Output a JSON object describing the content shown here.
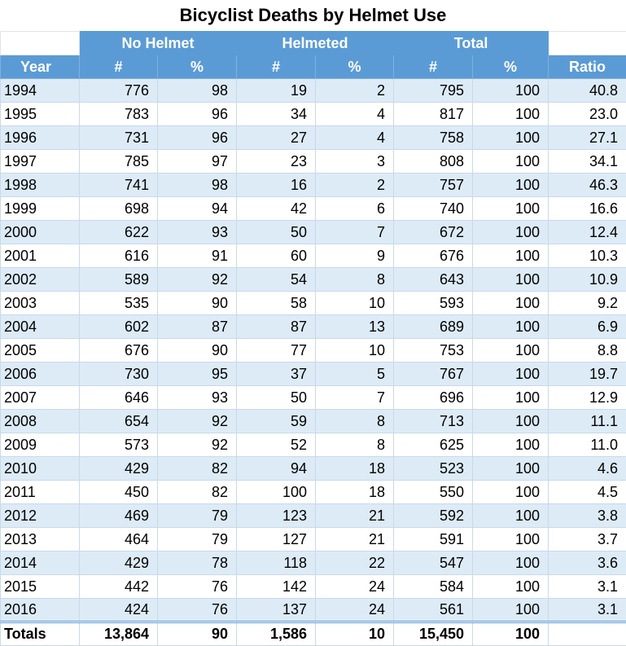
{
  "title": "Bicyclist Deaths by Helmet Use",
  "group_headers": [
    "No Helmet",
    "Helmeted",
    "Total"
  ],
  "columns": [
    "Year",
    "#",
    "%",
    "#",
    "%",
    "#",
    "%",
    "Ratio"
  ],
  "rows": [
    [
      "1994",
      "776",
      "98",
      "19",
      "2",
      "795",
      "100",
      "40.8"
    ],
    [
      "1995",
      "783",
      "96",
      "34",
      "4",
      "817",
      "100",
      "23.0"
    ],
    [
      "1996",
      "731",
      "96",
      "27",
      "4",
      "758",
      "100",
      "27.1"
    ],
    [
      "1997",
      "785",
      "97",
      "23",
      "3",
      "808",
      "100",
      "34.1"
    ],
    [
      "1998",
      "741",
      "98",
      "16",
      "2",
      "757",
      "100",
      "46.3"
    ],
    [
      "1999",
      "698",
      "94",
      "42",
      "6",
      "740",
      "100",
      "16.6"
    ],
    [
      "2000",
      "622",
      "93",
      "50",
      "7",
      "672",
      "100",
      "12.4"
    ],
    [
      "2001",
      "616",
      "91",
      "60",
      "9",
      "676",
      "100",
      "10.3"
    ],
    [
      "2002",
      "589",
      "92",
      "54",
      "8",
      "643",
      "100",
      "10.9"
    ],
    [
      "2003",
      "535",
      "90",
      "58",
      "10",
      "593",
      "100",
      "9.2"
    ],
    [
      "2004",
      "602",
      "87",
      "87",
      "13",
      "689",
      "100",
      "6.9"
    ],
    [
      "2005",
      "676",
      "90",
      "77",
      "10",
      "753",
      "100",
      "8.8"
    ],
    [
      "2006",
      "730",
      "95",
      "37",
      "5",
      "767",
      "100",
      "19.7"
    ],
    [
      "2007",
      "646",
      "93",
      "50",
      "7",
      "696",
      "100",
      "12.9"
    ],
    [
      "2008",
      "654",
      "92",
      "59",
      "8",
      "713",
      "100",
      "11.1"
    ],
    [
      "2009",
      "573",
      "92",
      "52",
      "8",
      "625",
      "100",
      "11.0"
    ],
    [
      "2010",
      "429",
      "82",
      "94",
      "18",
      "523",
      "100",
      "4.6"
    ],
    [
      "2011",
      "450",
      "82",
      "100",
      "18",
      "550",
      "100",
      "4.5"
    ],
    [
      "2012",
      "469",
      "79",
      "123",
      "21",
      "592",
      "100",
      "3.8"
    ],
    [
      "2013",
      "464",
      "79",
      "127",
      "21",
      "591",
      "100",
      "3.7"
    ],
    [
      "2014",
      "429",
      "78",
      "118",
      "22",
      "547",
      "100",
      "3.6"
    ],
    [
      "2015",
      "442",
      "76",
      "142",
      "24",
      "584",
      "100",
      "3.1"
    ],
    [
      "2016",
      "424",
      "76",
      "137",
      "24",
      "561",
      "100",
      "3.1"
    ]
  ],
  "totals": [
    "Totals",
    "13,864",
    "90",
    "1,586",
    "10",
    "15,450",
    "100"
  ]
}
